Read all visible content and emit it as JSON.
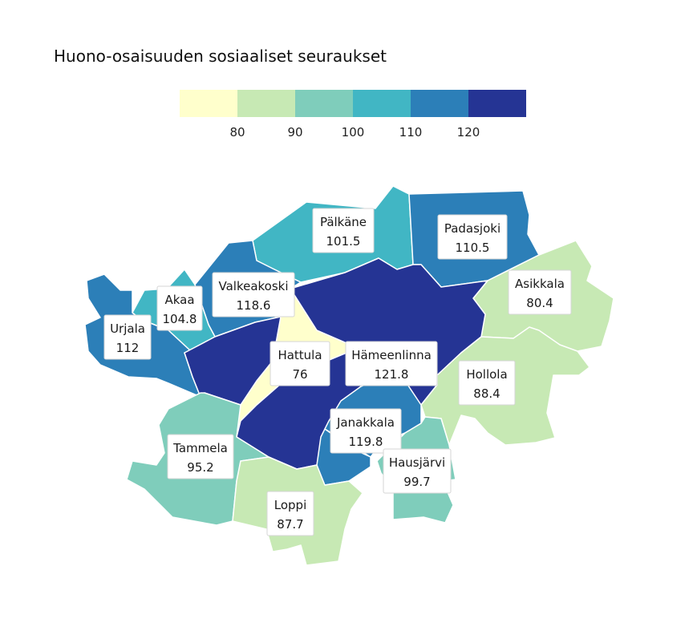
{
  "title": "Huono-osaisuuden sosiaaliset seuraukset",
  "legend": {
    "ticks": [
      "80",
      "90",
      "100",
      "110",
      "120"
    ],
    "colors": [
      "#ffffcc",
      "#c7e9b4",
      "#7fcdbb",
      "#41b6c4",
      "#2c7fb8",
      "#253494"
    ]
  },
  "regions": [
    {
      "name": "Pälkäne",
      "value": "101.5",
      "color": "#41b6c4"
    },
    {
      "name": "Padasjoki",
      "value": "110.5",
      "color": "#2c7fb8"
    },
    {
      "name": "Asikkala",
      "value": "80.4",
      "color": "#c7e9b4"
    },
    {
      "name": "Valkeakoski",
      "value": "118.6",
      "color": "#2c7fb8"
    },
    {
      "name": "Akaa",
      "value": "104.8",
      "color": "#41b6c4"
    },
    {
      "name": "Urjala",
      "value": "112",
      "color": "#2c7fb8"
    },
    {
      "name": "Hattula",
      "value": "76",
      "color": "#ffffcc"
    },
    {
      "name": "Hämeenlinna",
      "value": "121.8",
      "color": "#253494"
    },
    {
      "name": "Hollola",
      "value": "88.4",
      "color": "#c7e9b4"
    },
    {
      "name": "Janakkala",
      "value": "119.8",
      "color": "#2c7fb8"
    },
    {
      "name": "Tammela",
      "value": "95.2",
      "color": "#7fcdbb"
    },
    {
      "name": "Hausjärvi",
      "value": "99.7",
      "color": "#7fcdbb"
    },
    {
      "name": "Loppi",
      "value": "87.7",
      "color": "#c7e9b4"
    }
  ]
}
